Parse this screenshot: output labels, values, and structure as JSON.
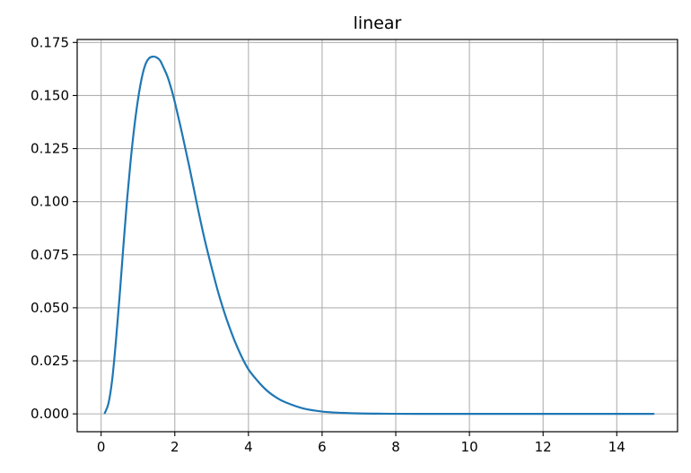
{
  "chart_data": {
    "type": "line",
    "title": "linear",
    "xlabel": "",
    "ylabel": "",
    "xlim": [
      -0.65,
      15.65
    ],
    "ylim": [
      -0.0084,
      0.1764
    ],
    "xticks": [
      0,
      2,
      4,
      6,
      8,
      10,
      12,
      14
    ],
    "xtick_labels": [
      "0",
      "2",
      "4",
      "6",
      "8",
      "10",
      "12",
      "14"
    ],
    "yticks": [
      0,
      0.025,
      0.05,
      0.075,
      0.1,
      0.125,
      0.15,
      0.175
    ],
    "ytick_labels": [
      "0.000",
      "0.025",
      "0.050",
      "0.075",
      "0.100",
      "0.125",
      "0.150",
      "0.175"
    ],
    "grid": true,
    "series": [
      {
        "color": "#1f77b4",
        "x": [
          0.1,
          0.2,
          0.3,
          0.4,
          0.5,
          0.6,
          0.7,
          0.8,
          0.9,
          1.0,
          1.1,
          1.2,
          1.3,
          1.4,
          1.5,
          1.6,
          1.7,
          1.8,
          1.9,
          2.0,
          2.2,
          2.4,
          2.6,
          2.8,
          3.0,
          3.2,
          3.4,
          3.6,
          3.8,
          4.0,
          4.25,
          4.5,
          4.75,
          5.0,
          5.5,
          6.0,
          6.5,
          7.0,
          7.5,
          8.0,
          9.0,
          10.0,
          11.0,
          12.0,
          13.0,
          14.0,
          15.0
        ],
        "y": [
          0.0004,
          0.005,
          0.016,
          0.034,
          0.055,
          0.078,
          0.1,
          0.119,
          0.135,
          0.148,
          0.158,
          0.1645,
          0.1675,
          0.1683,
          0.168,
          0.1665,
          0.163,
          0.159,
          0.1535,
          0.147,
          0.132,
          0.116,
          0.099,
          0.083,
          0.069,
          0.056,
          0.045,
          0.0355,
          0.0275,
          0.021,
          0.0155,
          0.011,
          0.0078,
          0.0055,
          0.0025,
          0.0011,
          0.0005,
          0.0002,
          0.0001,
          4e-05,
          0.0,
          0.0,
          0.0,
          0.0,
          0.0,
          0.0,
          0.0
        ]
      }
    ]
  }
}
